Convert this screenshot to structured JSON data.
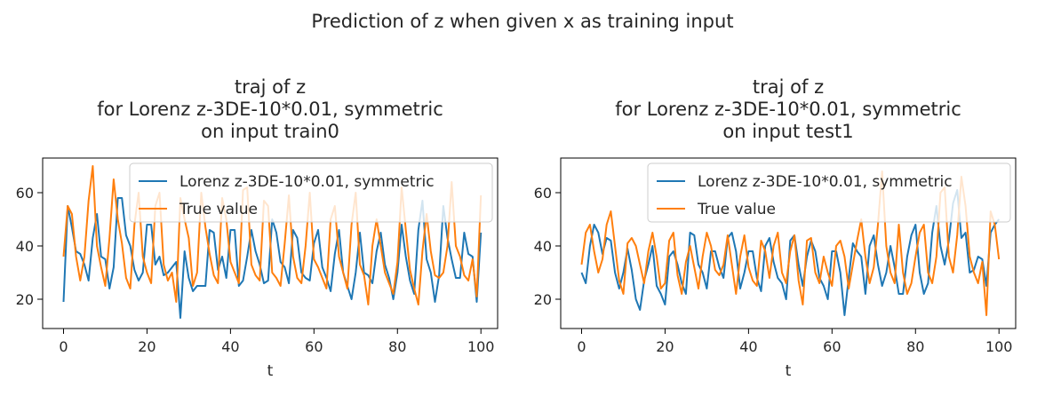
{
  "suptitle": "Prediction of z when given x as training input",
  "chart_data": [
    {
      "type": "line",
      "title_lines": [
        "traj of z",
        "for Lorenz z-3DE-10*0.01, symmetric",
        "on input train0"
      ],
      "xlabel": "t",
      "ylabel": "",
      "xlim": [
        -5,
        104
      ],
      "ylim": [
        9,
        73
      ],
      "xticks": [
        0,
        20,
        40,
        60,
        80,
        100
      ],
      "yticks": [
        20,
        40,
        60
      ],
      "legend_loc": "top-right",
      "grid": false,
      "series": [
        {
          "name": "Lorenz z-3DE-10*0.01, symmetric",
          "color": "#1f77b4",
          "values": [
            19,
            55,
            47,
            38,
            37,
            33,
            27,
            43,
            52,
            36,
            35,
            24,
            32,
            58,
            58,
            44,
            40,
            31,
            27,
            30,
            48,
            48,
            33,
            36,
            29,
            30,
            32,
            34,
            13,
            38,
            28,
            23,
            25,
            25,
            25,
            46,
            45,
            31,
            36,
            28,
            46,
            46,
            25,
            27,
            36,
            46,
            38,
            33,
            26,
            27,
            50,
            45,
            34,
            32,
            26,
            46,
            43,
            30,
            28,
            27,
            41,
            46,
            32,
            28,
            23,
            37,
            46,
            30,
            25,
            20,
            30,
            45,
            30,
            29,
            26,
            38,
            45,
            33,
            28,
            20,
            30,
            48,
            36,
            27,
            22,
            46,
            57,
            35,
            30,
            19,
            29,
            55,
            43,
            35,
            28,
            28,
            45,
            37,
            36,
            19,
            45
          ]
        },
        {
          "name": "True value",
          "color": "#ff7f0e",
          "values": [
            36,
            55,
            52,
            36,
            27,
            36,
            57,
            70,
            40,
            32,
            25,
            43,
            65,
            50,
            41,
            28,
            24,
            48,
            60,
            36,
            30,
            26,
            55,
            60,
            33,
            27,
            30,
            19,
            58,
            50,
            43,
            25,
            30,
            60,
            47,
            37,
            29,
            26,
            58,
            50,
            34,
            30,
            26,
            61,
            62,
            33,
            29,
            27,
            57,
            55,
            30,
            28,
            25,
            41,
            59,
            36,
            28,
            26,
            40,
            60,
            35,
            32,
            28,
            24,
            50,
            55,
            36,
            30,
            24,
            48,
            60,
            33,
            29,
            18,
            40,
            50,
            40,
            30,
            26,
            22,
            34,
            62,
            46,
            31,
            24,
            18,
            38,
            52,
            38,
            29,
            28,
            30,
            40,
            64,
            40,
            36,
            29,
            27,
            35,
            21,
            59
          ]
        }
      ]
    },
    {
      "type": "line",
      "title_lines": [
        "traj of z",
        "for Lorenz z-3DE-10*0.01, symmetric",
        "on input test1"
      ],
      "xlabel": "t",
      "ylabel": "",
      "xlim": [
        -5,
        104
      ],
      "ylim": [
        9,
        73
      ],
      "xticks": [
        0,
        20,
        40,
        60,
        80,
        100
      ],
      "yticks": [
        20,
        40,
        60
      ],
      "legend_loc": "top-right",
      "grid": false,
      "series": [
        {
          "name": "Lorenz z-3DE-10*0.01, symmetric",
          "color": "#1f77b4",
          "values": [
            30,
            26,
            40,
            48,
            45,
            37,
            43,
            42,
            30,
            24,
            30,
            39,
            31,
            20,
            16,
            27,
            33,
            40,
            25,
            22,
            18,
            36,
            38,
            33,
            26,
            22,
            45,
            44,
            33,
            30,
            24,
            38,
            38,
            32,
            28,
            43,
            45,
            38,
            24,
            30,
            38,
            38,
            28,
            23,
            40,
            43,
            34,
            28,
            26,
            20,
            42,
            44,
            33,
            25,
            36,
            42,
            38,
            28,
            25,
            20,
            38,
            38,
            30,
            14,
            28,
            41,
            38,
            36,
            22,
            40,
            44,
            33,
            25,
            30,
            40,
            32,
            22,
            22,
            36,
            44,
            48,
            30,
            22,
            26,
            45,
            55,
            40,
            33,
            42,
            56,
            61,
            43,
            45,
            30,
            31,
            36,
            35,
            25,
            45,
            48,
            50
          ]
        },
        {
          "name": "True value",
          "color": "#ff7f0e",
          "values": [
            33,
            45,
            48,
            38,
            30,
            35,
            48,
            53,
            40,
            27,
            22,
            41,
            43,
            40,
            33,
            26,
            38,
            45,
            36,
            24,
            26,
            42,
            45,
            29,
            22,
            34,
            40,
            32,
            24,
            36,
            45,
            40,
            31,
            29,
            33,
            44,
            33,
            22,
            36,
            44,
            32,
            27,
            25,
            42,
            38,
            28,
            40,
            45,
            30,
            26,
            38,
            44,
            27,
            18,
            42,
            43,
            30,
            26,
            36,
            30,
            25,
            40,
            42,
            36,
            24,
            33,
            42,
            50,
            36,
            26,
            32,
            48,
            68,
            40,
            30,
            26,
            48,
            30,
            22,
            26,
            36,
            45,
            48,
            30,
            26,
            36,
            60,
            62,
            36,
            30,
            44,
            66,
            55,
            36,
            30,
            26,
            34,
            14,
            53,
            48,
            35
          ]
        }
      ]
    }
  ]
}
